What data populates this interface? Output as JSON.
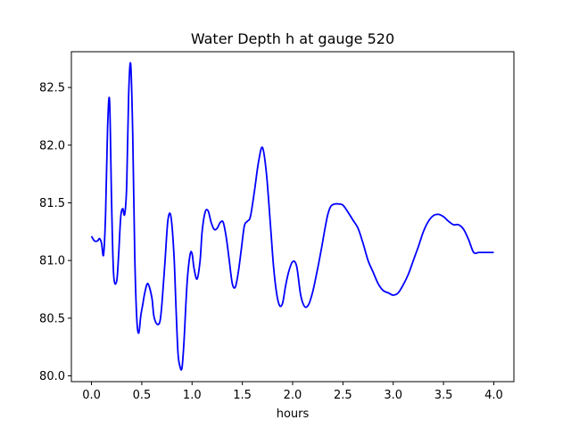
{
  "chart_data": {
    "type": "line",
    "title": "Water Depth h at gauge 520",
    "xlabel": "hours",
    "ylabel": "",
    "xlim": [
      -0.2,
      4.2
    ],
    "ylim": [
      79.95,
      82.81
    ],
    "grid": false,
    "legend": "none",
    "x_ticks": [
      0.0,
      0.5,
      1.0,
      1.5,
      2.0,
      2.5,
      3.0,
      3.5,
      4.0
    ],
    "x_tick_labels": [
      "0.0",
      "0.5",
      "1.0",
      "1.5",
      "2.0",
      "2.5",
      "3.0",
      "3.5",
      "4.0"
    ],
    "y_ticks": [
      80.0,
      80.5,
      81.0,
      81.5,
      82.0,
      82.5
    ],
    "y_tick_labels": [
      "80.0",
      "80.5",
      "81.0",
      "81.5",
      "82.0",
      "82.5"
    ],
    "series": [
      {
        "color": "#0000ff",
        "x": [
          0.0,
          0.03,
          0.06,
          0.08,
          0.1,
          0.12,
          0.14,
          0.16,
          0.18,
          0.2,
          0.22,
          0.25,
          0.27,
          0.29,
          0.31,
          0.33,
          0.35,
          0.37,
          0.39,
          0.41,
          0.43,
          0.45,
          0.47,
          0.49,
          0.51,
          0.53,
          0.56,
          0.6,
          0.62,
          0.65,
          0.68,
          0.7,
          0.73,
          0.76,
          0.79,
          0.82,
          0.84,
          0.86,
          0.88,
          0.9,
          0.92,
          0.95,
          0.98,
          1.0,
          1.02,
          1.05,
          1.08,
          1.1,
          1.13,
          1.16,
          1.19,
          1.22,
          1.25,
          1.28,
          1.31,
          1.34,
          1.37,
          1.4,
          1.43,
          1.46,
          1.49,
          1.52,
          1.55,
          1.58,
          1.62,
          1.66,
          1.7,
          1.74,
          1.78,
          1.81,
          1.84,
          1.87,
          1.9,
          1.93,
          1.96,
          2.0,
          2.04,
          2.08,
          2.12,
          2.16,
          2.2,
          2.23,
          2.26,
          2.29,
          2.32,
          2.35,
          2.38,
          2.42,
          2.46,
          2.5,
          2.55,
          2.6,
          2.65,
          2.7,
          2.75,
          2.8,
          2.85,
          2.9,
          2.95,
          3.0,
          3.05,
          3.1,
          3.15,
          3.2,
          3.25,
          3.3,
          3.35,
          3.4,
          3.45,
          3.5,
          3.55,
          3.6,
          3.65,
          3.7,
          3.75,
          3.8,
          3.85,
          3.9,
          3.95,
          4.0
        ],
        "y": [
          81.21,
          81.17,
          81.17,
          81.19,
          81.15,
          81.05,
          81.4,
          82.15,
          82.38,
          81.5,
          80.88,
          80.82,
          81.05,
          81.37,
          81.45,
          81.4,
          81.65,
          82.45,
          82.7,
          82.1,
          81.05,
          80.5,
          80.37,
          80.52,
          80.62,
          80.72,
          80.8,
          80.68,
          80.52,
          80.45,
          80.47,
          80.62,
          80.98,
          81.35,
          81.38,
          81.05,
          80.6,
          80.2,
          80.08,
          80.07,
          80.3,
          80.8,
          81.05,
          81.06,
          80.93,
          80.84,
          81.0,
          81.25,
          81.42,
          81.43,
          81.33,
          81.27,
          81.28,
          81.33,
          81.33,
          81.2,
          81.0,
          80.8,
          80.77,
          80.9,
          81.1,
          81.3,
          81.34,
          81.38,
          81.6,
          81.85,
          81.98,
          81.75,
          81.3,
          80.95,
          80.72,
          80.61,
          80.63,
          80.78,
          80.9,
          80.99,
          80.95,
          80.7,
          80.6,
          80.62,
          80.73,
          80.85,
          80.98,
          81.12,
          81.27,
          81.4,
          81.47,
          81.49,
          81.49,
          81.48,
          81.42,
          81.35,
          81.28,
          81.15,
          81.0,
          80.9,
          80.8,
          80.74,
          80.72,
          80.7,
          80.72,
          80.79,
          80.88,
          81.0,
          81.12,
          81.25,
          81.34,
          81.39,
          81.4,
          81.38,
          81.34,
          81.31,
          81.31,
          81.27,
          81.18,
          81.07,
          81.07,
          81.07,
          81.07,
          81.07
        ]
      }
    ]
  }
}
